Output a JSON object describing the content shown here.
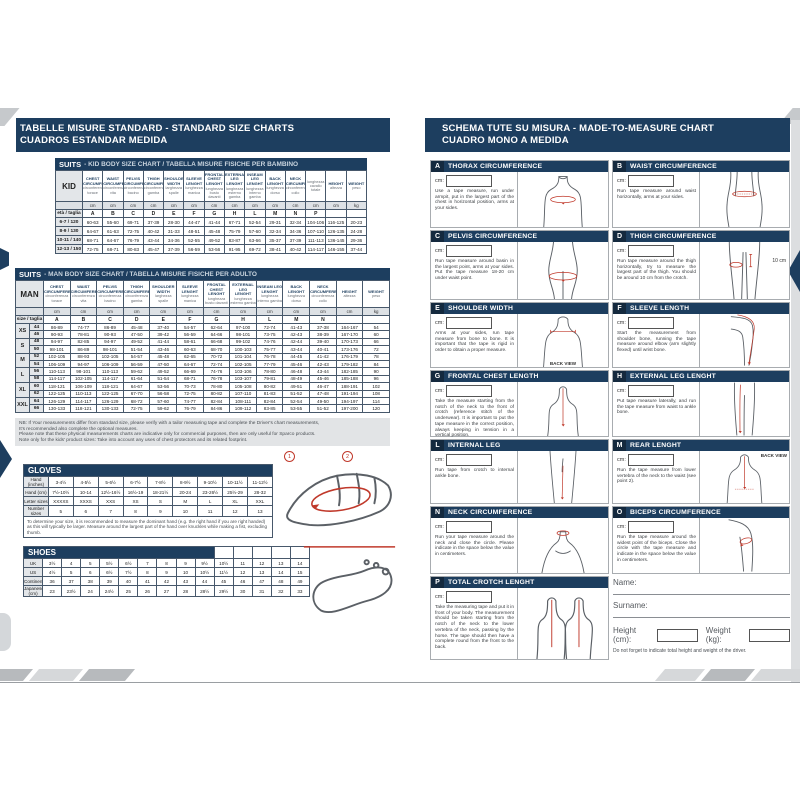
{
  "headers": {
    "left": {
      "line1": "TABELLE MISURE STANDARD - STANDARD SIZE CHARTS",
      "line2": "CUADROS ESTANDAR MEDIDA"
    },
    "right": {
      "line1": "SCHEMA TUTE SU MISURA - MADE-TO-MEASURE CHART",
      "line2": "CUADRO MONO A MEDIDA"
    }
  },
  "kid_table": {
    "title_label": "SUITS",
    "title_rest": "- KID BODY SIZE CHART  /  TABELLA MISURE FISICHE PER BAMBINO",
    "corner_label": "KID",
    "row_header_label": "età / taglia",
    "columns": [
      {
        "en": "CHEST CIRCUMFER.",
        "it": "circonferenza torace",
        "letter": "A",
        "unit": "cm"
      },
      {
        "en": "WAIST CIRCUMFER.",
        "it": "circonferenza vita",
        "letter": "B",
        "unit": "cm"
      },
      {
        "en": "PELVIS CIRCUMFER.",
        "it": "circonferenza bacino",
        "letter": "C",
        "unit": "cm"
      },
      {
        "en": "THIGH CIRCUMFER.",
        "it": "circonferenza gamba",
        "letter": "D",
        "unit": "cm"
      },
      {
        "en": "SHOULDER WIDTH",
        "it": "larghezza spalle",
        "letter": "E",
        "unit": "cm"
      },
      {
        "en": "SLEEVE LENGHT",
        "it": "lunghezza manica",
        "letter": "F",
        "unit": "cm"
      },
      {
        "en": "FRONTAL CHEST LENGHT",
        "it": "lunghezza busto davanti",
        "letter": "G",
        "unit": "cm"
      },
      {
        "en": "EXTERNAL LEG LENGHT",
        "it": "lunghezza esterno gamba",
        "letter": "H",
        "unit": "cm"
      },
      {
        "en": "INSEAM LEG LENGHT",
        "it": "lunghezza interno gamba",
        "letter": "L",
        "unit": "cm"
      },
      {
        "en": "BACK LENGHT",
        "it": "lunghezza dorso",
        "letter": "M",
        "unit": "cm"
      },
      {
        "en": "NECK CIRCUMFER.",
        "it": "circonferenza collo",
        "letter": "N",
        "unit": "cm"
      },
      {
        "en": "",
        "it": "lunghezza cavallo totale",
        "letter": "P",
        "unit": "cm"
      },
      {
        "en": "HEIGHT",
        "it": "altezza",
        "letter": "",
        "unit": "cm"
      },
      {
        "en": "WEIGHT",
        "it": "peso",
        "letter": "",
        "unit": "kg"
      }
    ],
    "rows": [
      {
        "size": "6-7 / 120",
        "values": [
          "60-63",
          "55-60",
          "69-71",
          "37-39",
          "28-30",
          "44-47",
          "41-44",
          "67-71",
          "52-54",
          "29-31",
          "32-34",
          "104-106",
          "116-125",
          "20-23"
        ]
      },
      {
        "size": "8-9 / 130",
        "values": [
          "64-67",
          "61-63",
          "72-75",
          "40-42",
          "31-33",
          "48-51",
          "45-48",
          "75-79",
          "57-60",
          "32-34",
          "34-36",
          "107-110",
          "126-135",
          "24-28"
        ]
      },
      {
        "size": "10-11 / 140",
        "values": [
          "68-71",
          "64-67",
          "76-79",
          "43-44",
          "34-36",
          "52-55",
          "49-52",
          "83-87",
          "63-66",
          "35-37",
          "37-39",
          "111-113",
          "136-145",
          "29-36"
        ]
      },
      {
        "size": "12-13 / 150",
        "values": [
          "72-75",
          "68-71",
          "80-83",
          "45-47",
          "37-39",
          "56-59",
          "53-56",
          "91-95",
          "69-72",
          "38-41",
          "40-42",
          "114-117",
          "146-155",
          "37-44"
        ]
      }
    ]
  },
  "man_table": {
    "title_label": "SUITS",
    "title_rest": "- MAN BODY SIZE CHART / TABELLA MISURE FISICHE PER ADULTO",
    "corner_label": "MAN",
    "row_header_label": "size / taglia",
    "columns": [
      {
        "en": "CHEST CIRCUMFERENCE",
        "it": "circonferenza torace",
        "letter": "A",
        "unit": "cm"
      },
      {
        "en": "WAIST CIRCUMFERENCE",
        "it": "circonferenza vita",
        "letter": "B",
        "unit": "cm"
      },
      {
        "en": "PELVIS CIRCUMFERENCE",
        "it": "circonferenza bacino",
        "letter": "C",
        "unit": "cm"
      },
      {
        "en": "THIGH CIRCUMFERENCE",
        "it": "circonferenza gamba",
        "letter": "D",
        "unit": "cm"
      },
      {
        "en": "SHOULDER WIDTH",
        "it": "larghezza spalle",
        "letter": "E",
        "unit": "cm"
      },
      {
        "en": "SLEEVE LENGHT",
        "it": "lunghezza manica",
        "letter": "F",
        "unit": "cm"
      },
      {
        "en": "FRONTAL CHEST LENGHT",
        "it": "lunghezza busto davanti",
        "letter": "G",
        "unit": "cm"
      },
      {
        "en": "EXTERNAL LEG LENGHT",
        "it": "lunghezza esterno gamba",
        "letter": "H",
        "unit": "cm"
      },
      {
        "en": "INSEAM LEG LENGHT",
        "it": "lunghezza interno gamba",
        "letter": "L",
        "unit": "cm"
      },
      {
        "en": "BACK LENGHT",
        "it": "lunghezza dorso",
        "letter": "M",
        "unit": "cm"
      },
      {
        "en": "NECK CIRCUMFERENCE",
        "it": "circonferenza collo",
        "letter": "N",
        "unit": "cm"
      },
      {
        "en": "HEIGHT",
        "it": "altezza",
        "letter": "",
        "unit": "cm"
      },
      {
        "en": "WEIGHT",
        "it": "peso",
        "letter": "",
        "unit": "kg"
      }
    ],
    "rows": [
      {
        "group": "XS",
        "size": "44",
        "values": [
          "86-89",
          "74-77",
          "86-89",
          "45-48",
          "37-40",
          "54-57",
          "62-64",
          "97-100",
          "72-74",
          "41-43",
          "37-38",
          "164-167",
          "54"
        ]
      },
      {
        "group": "",
        "size": "46",
        "values": [
          "90-93",
          "78-81",
          "90-93",
          "47-50",
          "39-42",
          "56-59",
          "64-66",
          "98-101",
          "73-75",
          "42-43",
          "38-39",
          "167-170",
          "60"
        ]
      },
      {
        "group": "S",
        "size": "48",
        "values": [
          "94-97",
          "82-85",
          "94-97",
          "49-52",
          "41-44",
          "58-61",
          "66-68",
          "99-102",
          "74-76",
          "42-44",
          "39-40",
          "170-173",
          "66"
        ]
      },
      {
        "group": "",
        "size": "50",
        "values": [
          "98-101",
          "86-89",
          "98-101",
          "51-54",
          "43-46",
          "60-63",
          "68-70",
          "100-103",
          "75-77",
          "43-44",
          "40-41",
          "173-176",
          "72"
        ]
      },
      {
        "group": "M",
        "size": "52",
        "values": [
          "102-105",
          "88-93",
          "102-105",
          "54-57",
          "45-48",
          "62-65",
          "70-72",
          "101-104",
          "76-78",
          "44-45",
          "41-42",
          "176-179",
          "78"
        ]
      },
      {
        "group": "",
        "size": "54",
        "values": [
          "106-109",
          "94-97",
          "106-109",
          "56-59",
          "47-50",
          "64-67",
          "72-74",
          "102-105",
          "77-79",
          "45-46",
          "42-43",
          "179-182",
          "84"
        ]
      },
      {
        "group": "L",
        "size": "56",
        "values": [
          "110-113",
          "98-101",
          "110-113",
          "59-62",
          "49-52",
          "66-69",
          "74-76",
          "103-106",
          "78-80",
          "46-48",
          "43-44",
          "182-185",
          "90"
        ]
      },
      {
        "group": "",
        "size": "58",
        "values": [
          "114-117",
          "102-105",
          "114-117",
          "61-64",
          "51-54",
          "68-71",
          "76-78",
          "103-107",
          "79-81",
          "48-49",
          "45-46",
          "185-188",
          "96"
        ]
      },
      {
        "group": "XL",
        "size": "60",
        "values": [
          "118-121",
          "106-109",
          "118-121",
          "64-67",
          "53-56",
          "70-73",
          "78-80",
          "105-108",
          "80-82",
          "49-51",
          "46-47",
          "188-191",
          "102"
        ]
      },
      {
        "group": "",
        "size": "62",
        "values": [
          "122-125",
          "110-113",
          "122-125",
          "67-70",
          "56-58",
          "72-75",
          "80-82",
          "107-110",
          "81-83",
          "51-52",
          "47-48",
          "191-194",
          "108"
        ]
      },
      {
        "group": "XXL",
        "size": "64",
        "values": [
          "126-129",
          "114-117",
          "126-129",
          "68-72",
          "57-60",
          "74-77",
          "82-84",
          "108-111",
          "82-84",
          "52-54",
          "49-50",
          "194-197",
          "114"
        ]
      },
      {
        "group": "",
        "size": "66",
        "values": [
          "130-133",
          "118-121",
          "130-133",
          "72-75",
          "59-62",
          "76-79",
          "84-86",
          "109-112",
          "83-85",
          "53-55",
          "51-52",
          "197-200",
          "120"
        ]
      }
    ]
  },
  "size_notes": [
    "NB: If Your measurements differ from standard size, please verify with a tailor measuring tape and complete the Driver's chart measurements,",
    "It's recommended also complete the optional measures.",
    "Please note that these physical measurements charts are indicative only for commercial purposes, then are only useful for Sparco products.",
    "Note only for the kids' product sizes: Take into account any uses of chest protectors and its related footprint."
  ],
  "gloves": {
    "title": "GLOVES",
    "rows": [
      {
        "label": "Hand (inches)",
        "values": [
          "3-4½",
          "4-5½",
          "5-6½",
          "6-7½",
          "7-8½",
          "8-9½",
          "9-10½",
          "10-11½",
          "11-12½"
        ]
      },
      {
        "label": "Hand (cm)",
        "values": [
          "7½-10½",
          "10-14",
          "12½-16½",
          "16½-19",
          "18-21½",
          "20-24",
          "23-26½",
          "25½-29",
          "28-32"
        ]
      },
      {
        "label": "Letter sizes",
        "values": [
          "XXXXS",
          "XXXS",
          "XXS",
          "XS",
          "S",
          "M",
          "L",
          "XL",
          "XXL"
        ]
      },
      {
        "label": "Number sizes",
        "values": [
          "5",
          "6",
          "7",
          "8",
          "9",
          "10",
          "11",
          "12",
          "13"
        ]
      }
    ],
    "note": "To determine your size, it is recommended to measure the dominant hand (e.g. the right hand if you are right handed) as this will typically be larger. Measure around the largest part of the hand over knuckles while making a fist, excluding thumb.",
    "marker1": "1",
    "marker2": "2"
  },
  "shoes": {
    "title": "SHOES",
    "rows": [
      {
        "label": "UK",
        "values": [
          "3½",
          "4",
          "5",
          "5½",
          "6½",
          "7",
          "8",
          "9",
          "9½",
          "10½",
          "11",
          "12",
          "13",
          "14"
        ]
      },
      {
        "label": "US",
        "values": [
          "4½",
          "5",
          "6",
          "6½",
          "7½",
          "8",
          "9",
          "10",
          "10½",
          "11½",
          "12",
          "13",
          "14",
          "15"
        ]
      },
      {
        "label": "Continental",
        "values": [
          "36",
          "37",
          "38",
          "39",
          "40",
          "41",
          "42",
          "43",
          "44",
          "45",
          "46",
          "47",
          "48",
          "49"
        ]
      },
      {
        "label": "Japanese (cm)",
        "values": [
          "23",
          "23½",
          "24",
          "24½",
          "25",
          "26",
          "27",
          "28",
          "28½",
          "29½",
          "30",
          "31",
          "32",
          "33"
        ]
      }
    ]
  },
  "sections": [
    {
      "letter": "A",
      "title": "THORAX CIRCUMFERENCE",
      "cm_label": "cm:",
      "text": "Use a tape measure, run under armpit, put in the largest part of the chest in horizontal position, arms at your sides."
    },
    {
      "letter": "B",
      "title": "WAIST CIRCUMFERENCE",
      "cm_label": "cm:",
      "text": "Run tape measure around waist horizontally, arms at your sides."
    },
    {
      "letter": "C",
      "title": "PELVIS CIRCUMFERENCE",
      "cm_label": "cm:",
      "text": "Run tape measure around basin in the largest point, arms at your sides. Put the tape measure 18-20 cm under waist point."
    },
    {
      "letter": "D",
      "title": "THIGH CIRCUMFERENCE",
      "cm_label": "cm:",
      "text": "Run tape measure around the thigh horizontally, try to measure the largest part of the thigh. You should be around 10 cm from the crotch.",
      "annotation": "10 cm"
    },
    {
      "letter": "E",
      "title": "SHOULDER WIDTH",
      "cm_label": "cm:",
      "text": "Arms at your sides, run tape measure from bone to bone. It is important that the tape is rigid in order to obtain a proper measure.",
      "caption": "BACK VIEW"
    },
    {
      "letter": "F",
      "title": "SLEEVE LENGTH",
      "cm_label": "cm:",
      "text": "Start the measurement from shoulder bone, running the tape measure around elbow (arm slightly flexed) until wrist bone."
    },
    {
      "letter": "G",
      "title": "FRONTAL CHEST LENGTH",
      "cm_label": "cm:",
      "text": "Take the measure starting from the notch of the neck to the front of crotch (reference stitch of the underwear). It is important to put the tape measure in the correct position, always keeping in tension in a vertical position."
    },
    {
      "letter": "H",
      "title": "EXTERNAL LEG LENGHT",
      "cm_label": "cm:",
      "text": "Put tape measure laterally, and run the tape measure from waist to ankle bone."
    },
    {
      "letter": "L",
      "title": "INTERNAL LEG",
      "cm_label": "cm:",
      "text": "Run tape from crotch to internal ankle bone."
    },
    {
      "letter": "M",
      "title": "REAR LENGHT",
      "cm_label": "cm:",
      "text": "Run the tape measure from lower vertebra of the neck to the waist (see point 2).",
      "caption": "BACK VIEW"
    },
    {
      "letter": "N",
      "title": "NECK CIRCUMFERENCE",
      "cm_label": "cm:",
      "text": "Run your tape measure around the neck and close the circle. Please indicate in the space below the value in centimeters."
    },
    {
      "letter": "O",
      "title": "BICEPS CIRCUMFERENCE",
      "cm_label": "cm:",
      "text": "Run the tape measure around the widest point of the biceps. Close the circle with the tape measure and indicate in the space below the value in centimeters."
    },
    {
      "letter": "P",
      "title": "TOTAL CROTCH LENGHT",
      "cm_label": "cm:",
      "text": "Take the measuring tape and put it in front of your body. The measurement should be taken starting from the notch of the neck to the lower vertebra of the neck, passing by the horse. The tape should then have a complete round from the front to the back."
    }
  ],
  "form": {
    "name_label": "Name:",
    "surname_label": "Surname:",
    "height_label": "Height (cm):",
    "weight_label": "Weight (kg):",
    "note": "Do not forget to indicate total height and weight of the driver."
  },
  "colors": {
    "navy": "#1d3e5f",
    "navy_dark": "#14293e",
    "red": "#c0392b"
  }
}
